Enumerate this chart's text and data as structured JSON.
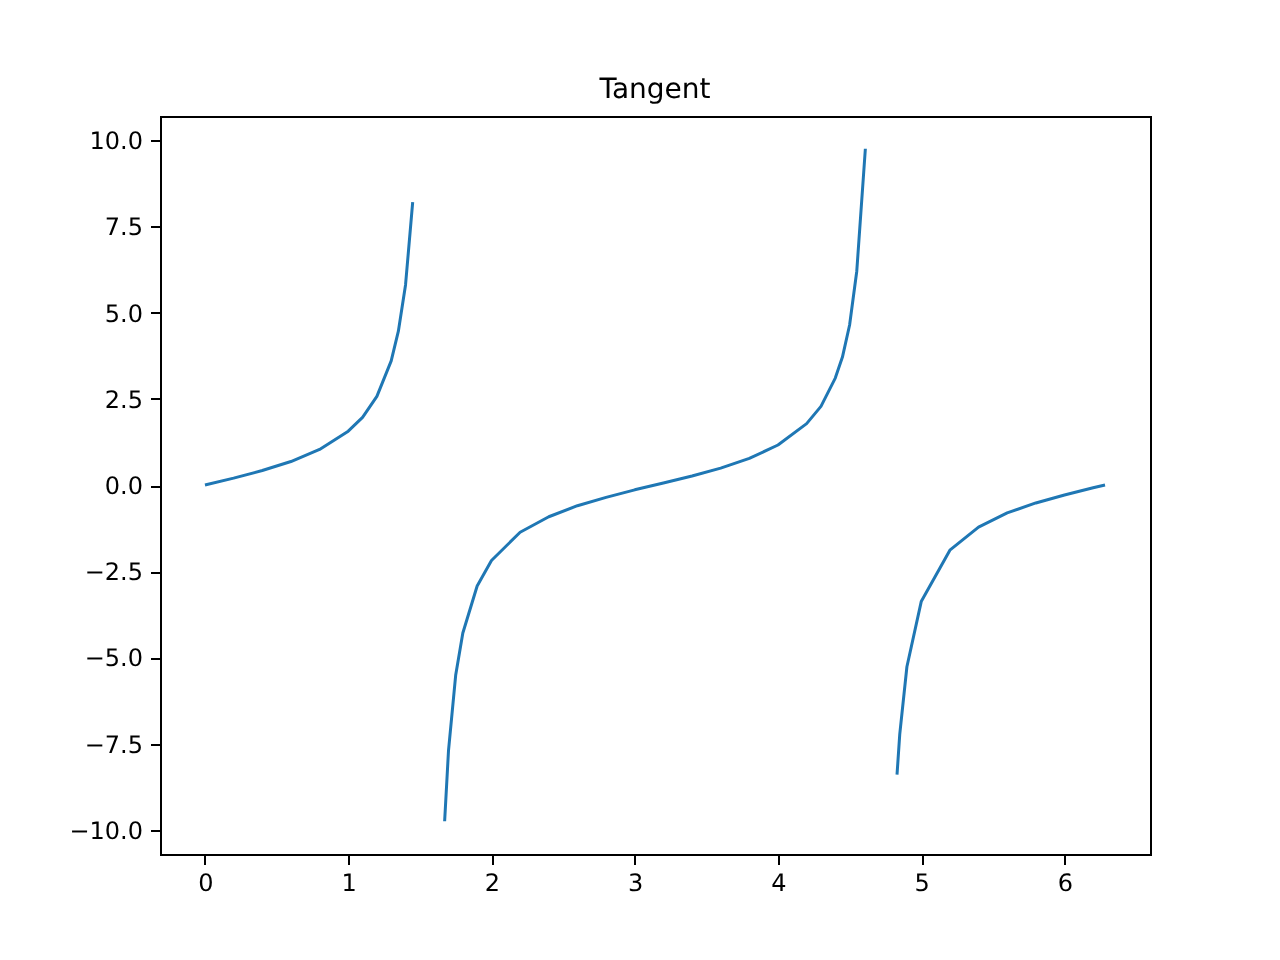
{
  "chart_data": {
    "type": "line",
    "title": "Tangent",
    "series": [
      {
        "color": "#1f77b4",
        "x": [
          0,
          0.2,
          0.4,
          0.6,
          0.8,
          1.0,
          1.1,
          1.2,
          1.3,
          1.35,
          1.4,
          1.45
        ],
        "values": [
          0,
          0.2,
          0.42,
          0.68,
          1.03,
          1.56,
          1.96,
          2.57,
          3.6,
          4.46,
          5.8,
          8.2
        ]
      },
      {
        "color": "#1f77b4",
        "x": [
          1.673,
          1.7,
          1.75,
          1.8,
          1.9,
          2.0,
          2.2,
          2.4,
          2.6,
          2.8,
          3.0,
          3.2,
          3.4,
          3.6,
          3.8,
          4.0,
          4.2,
          4.3,
          4.4,
          4.45,
          4.5,
          4.55,
          4.61
        ],
        "values": [
          -9.75,
          -7.7,
          -5.52,
          -4.29,
          -2.93,
          -2.19,
          -1.37,
          -0.92,
          -0.6,
          -0.36,
          -0.14,
          0.06,
          0.26,
          0.49,
          0.77,
          1.16,
          1.78,
          2.28,
          3.1,
          3.71,
          4.64,
          6.2,
          9.75
        ]
      },
      {
        "color": "#1f77b4",
        "x": [
          4.831,
          4.85,
          4.9,
          5.0,
          5.2,
          5.4,
          5.6,
          5.8,
          6.0,
          6.2,
          6.283
        ],
        "values": [
          -8.4,
          -7.23,
          -5.27,
          -3.38,
          -1.89,
          -1.22,
          -0.81,
          -0.52,
          -0.29,
          -0.08,
          0
        ]
      }
    ],
    "xlim": [
      -0.314,
      6.597
    ],
    "xticks": [
      0,
      1,
      2,
      3,
      4,
      5,
      6
    ],
    "ylim": [
      -10.7,
      10.7
    ],
    "yticks": [
      {
        "value": -10,
        "label": "−10.0"
      },
      {
        "value": -7.5,
        "label": "−7.5"
      },
      {
        "value": -5,
        "label": "−5.0"
      },
      {
        "value": -2.5,
        "label": "−2.5"
      },
      {
        "value": 0,
        "label": "0.0"
      },
      {
        "value": 2.5,
        "label": "2.5"
      },
      {
        "value": 5,
        "label": "5.0"
      },
      {
        "value": 7.5,
        "label": "7.5"
      },
      {
        "value": 10,
        "label": "10.0"
      }
    ],
    "grid": false
  }
}
